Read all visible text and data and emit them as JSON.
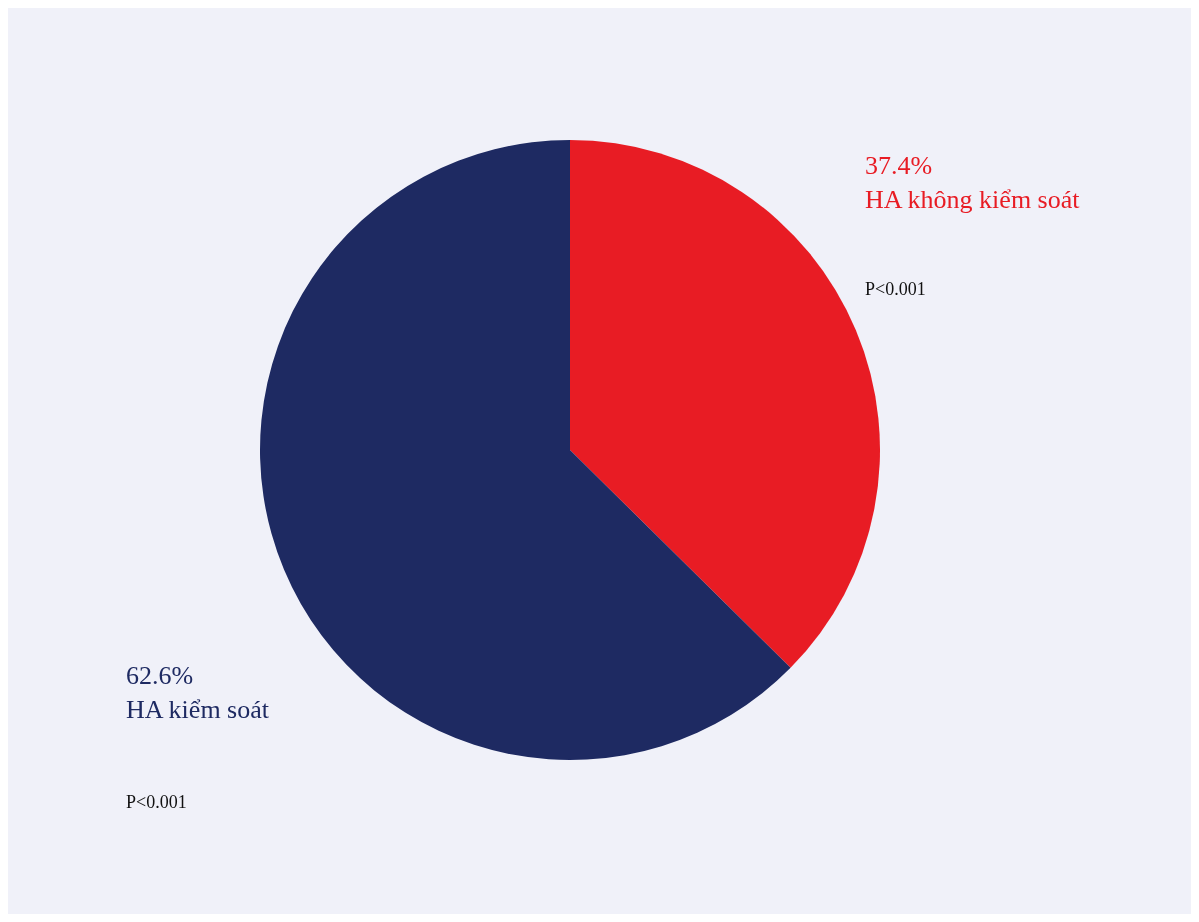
{
  "chart_data": {
    "type": "pie",
    "categories": [
      "HA không kiểm soát",
      "HA kiểm soát"
    ],
    "values": [
      37.4,
      62.6
    ],
    "colors": [
      "#e81c24",
      "#1e2a62"
    ],
    "value_labels": [
      "37.4%",
      "62.6%"
    ],
    "annotations": [
      "P<0.001",
      "P<0.001"
    ],
    "legend": false
  }
}
